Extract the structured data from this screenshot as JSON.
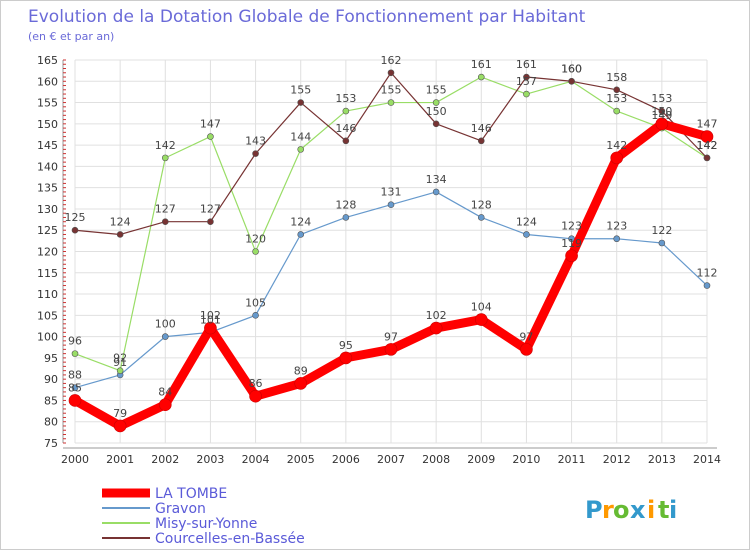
{
  "chart_data": {
    "type": "line",
    "title": "Evolution de la Dotation Globale de Fonctionnement par Habitant",
    "subtitle": "(en € et par an)",
    "xlabel": "",
    "ylabel": "",
    "ylim": [
      75,
      165
    ],
    "yticks": [
      75,
      80,
      85,
      90,
      95,
      100,
      105,
      110,
      115,
      120,
      125,
      130,
      135,
      140,
      145,
      150,
      155,
      160,
      165
    ],
    "grid": true,
    "legend_position": "bottom-left",
    "x": [
      "2000",
      "2001",
      "2002",
      "2003",
      "2004",
      "2005",
      "2006",
      "2007",
      "2008",
      "2009",
      "2010",
      "2011",
      "2012",
      "2013",
      "2014"
    ],
    "series": [
      {
        "name": "LA TOMBE",
        "color": "#ff0000",
        "emphasis": true,
        "values": [
          85,
          79,
          84,
          102,
          86,
          89,
          95,
          97,
          102,
          104,
          97,
          119,
          142,
          150,
          147
        ]
      },
      {
        "name": "Gravon",
        "color": "#6699cc",
        "values": [
          88,
          91,
          100,
          101,
          105,
          124,
          128,
          131,
          134,
          128,
          124,
          123,
          123,
          122,
          112
        ]
      },
      {
        "name": "Misy-sur-Yonne",
        "color": "#99dd66",
        "values": [
          96,
          92,
          142,
          147,
          120,
          144,
          153,
          155,
          155,
          161,
          157,
          160,
          153,
          149,
          142
        ]
      },
      {
        "name": "Courcelles-en-Bassée",
        "color": "#773333",
        "values": [
          125,
          124,
          127,
          127,
          143,
          155,
          146,
          162,
          150,
          146,
          161,
          160,
          158,
          153,
          142
        ]
      }
    ]
  },
  "brand": {
    "text": "Proxiti",
    "letters": [
      "P",
      "r",
      "o",
      "x",
      "i",
      "t",
      "i"
    ],
    "colors": [
      "#3399cc",
      "#ff9900",
      "#66bb33",
      "#3399cc",
      "#ff9900",
      "#66bb33",
      "#3399cc"
    ]
  },
  "colors": {
    "title": "#6a6ad8",
    "axis_text": "#333333",
    "legend_text": "#5a5ad8",
    "grid": "#e0e0e0"
  }
}
